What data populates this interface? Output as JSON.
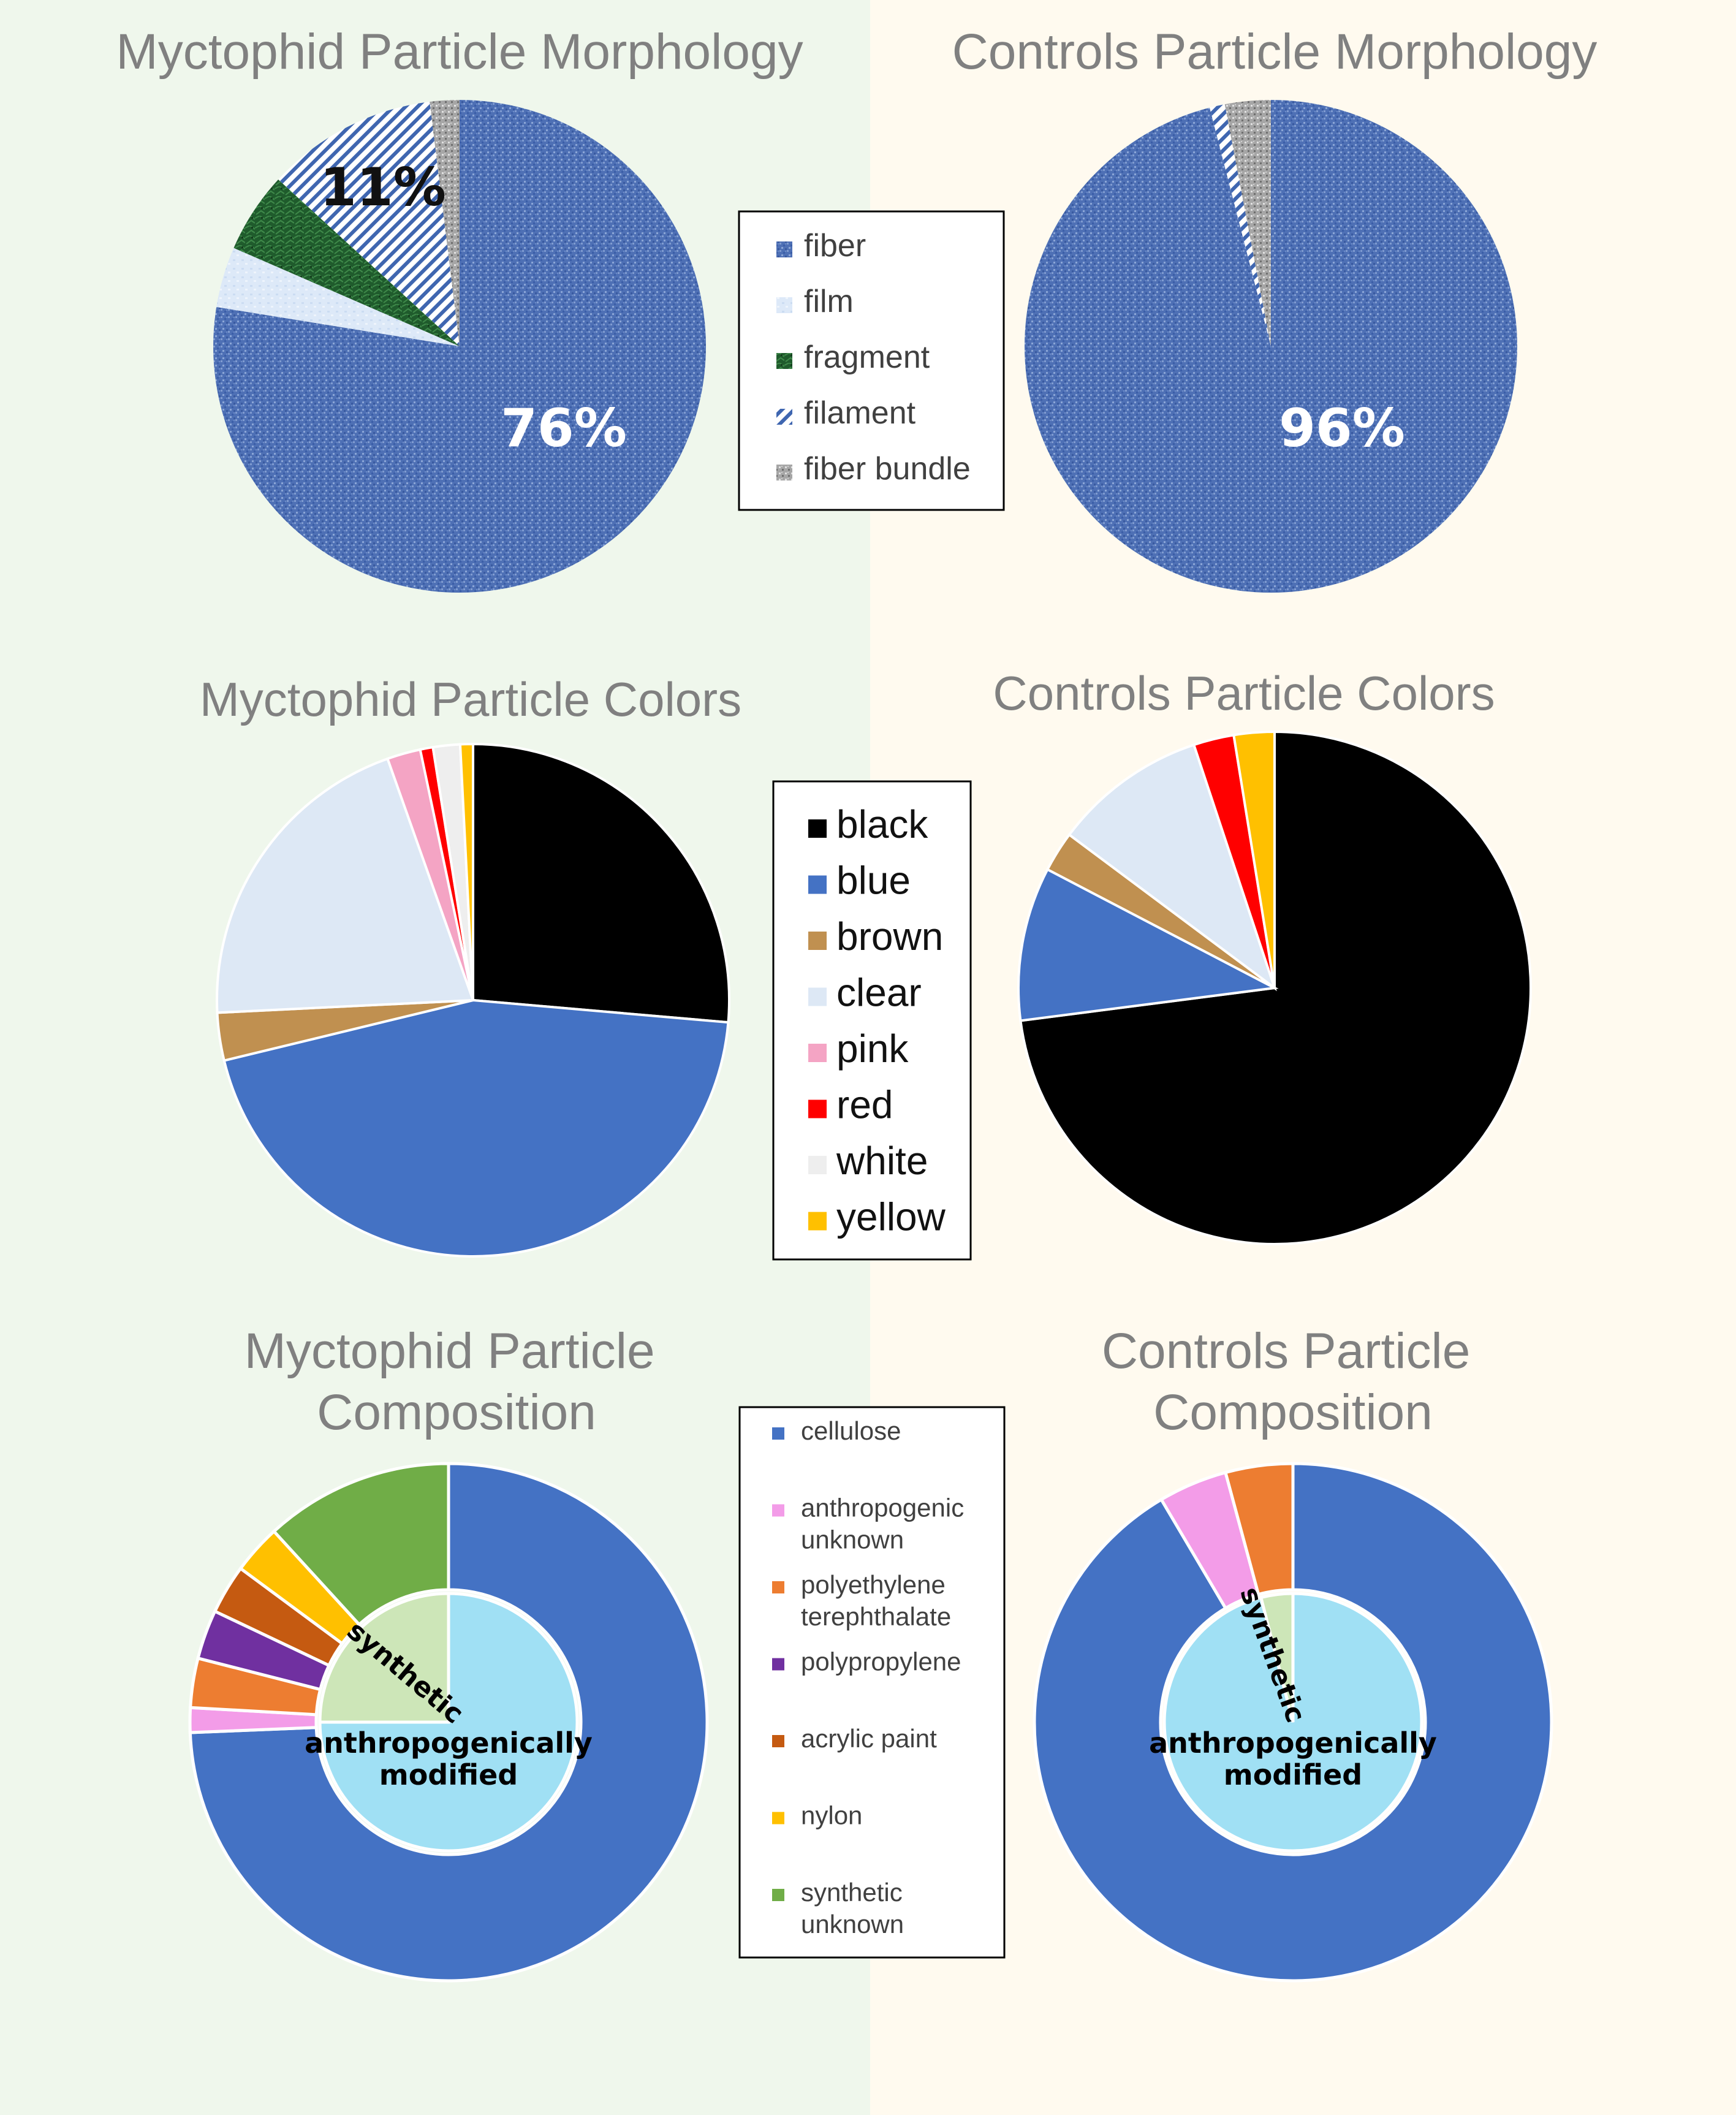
{
  "morphology_legend": [
    "fiber",
    "film",
    "fragment",
    "filament",
    "fiber bundle"
  ],
  "colors_legend": [
    "black",
    "blue",
    "brown",
    "clear",
    "pink",
    "red",
    "white",
    "yellow"
  ],
  "composition_legend": [
    "cellulose",
    "anthropogenic unknown",
    "polyethylene terephthalate",
    "polypropylene",
    "acrylic paint",
    "nylon",
    "synthetic unknown"
  ],
  "inner_ring_labels": {
    "synthetic": "synthetic",
    "anthropogenic_line1": "anthropogenically",
    "anthropogenic_line2": "modified"
  },
  "panel_colors": {
    "left": "#eff7ec",
    "right": "#fffaef"
  },
  "series_colors": {
    "fiber": "#4e70b5",
    "film": "#dbe8f8",
    "fragment": "#1f5b2c",
    "filament": "#3f66b0",
    "fiber_bundle": "#a6a6a6",
    "black": "#000000",
    "blue": "#4472c4",
    "brown": "#c09050",
    "clear": "#dde8f5",
    "pink": "#f4a4c4",
    "red": "#ff0000",
    "white": "#eeeeee",
    "yellow": "#ffc000",
    "cellulose": "#4472c4",
    "anthropogenic_unknown": "#f39ce8",
    "polyethylene_terephthalate": "#ed7d31",
    "polypropylene": "#7030a0",
    "acrylic_paint": "#c55a11",
    "nylon": "#ffc000",
    "synthetic_unknown": "#70ad47",
    "inner_anthropogenic": "#a0e0f4",
    "inner_synthetic": "#cde6b8"
  },
  "chart_data": [
    {
      "id": "myct-morph",
      "type": "pie",
      "title": "Myctophid Particle Morphology",
      "categories": [
        "fiber",
        "film",
        "fragment",
        "filament",
        "fiber bundle"
      ],
      "values": [
        76,
        3.9,
        5.2,
        11,
        1.9
      ],
      "data_labels": [
        "76%",
        "",
        "",
        "11%",
        ""
      ]
    },
    {
      "id": "ctrl-morph",
      "type": "pie",
      "title": "Controls Particle Morphology",
      "categories": [
        "fiber",
        "film",
        "fragment",
        "filament",
        "fiber bundle"
      ],
      "values": [
        96,
        0,
        0,
        1,
        3
      ],
      "data_labels": [
        "96%",
        "",
        "",
        "",
        ""
      ]
    },
    {
      "id": "myct-colors",
      "type": "pie",
      "title": "Myctophid Particle Colors",
      "categories": [
        "black",
        "blue",
        "brown",
        "clear",
        "pink",
        "red",
        "white",
        "yellow"
      ],
      "values": [
        26.3,
        44.7,
        3.0,
        20.3,
        2.1,
        0.8,
        1.7,
        0.8
      ]
    },
    {
      "id": "ctrl-colors",
      "type": "pie",
      "title": "Controls Particle Colors",
      "categories": [
        "black",
        "blue",
        "brown",
        "clear",
        "pink",
        "red",
        "white",
        "yellow"
      ],
      "values": [
        71.5,
        9.5,
        2.5,
        9.5,
        0,
        2.5,
        0,
        2.5
      ]
    },
    {
      "id": "myct-comp",
      "type": "pie",
      "title": "Myctophid Particle Composition",
      "outer": {
        "categories": [
          "cellulose",
          "anthropogenic unknown",
          "polyethylene terephthalate",
          "polypropylene",
          "acrylic paint",
          "nylon",
          "synthetic unknown"
        ],
        "values": [
          72.5,
          1.5,
          3.0,
          3.0,
          3.0,
          3.0,
          11.5
        ]
      },
      "inner": {
        "categories": [
          "anthropogenically modified",
          "synthetic"
        ],
        "values": [
          75,
          25
        ]
      }
    },
    {
      "id": "ctrl-comp",
      "type": "pie",
      "title": "Controls Particle Composition",
      "outer": {
        "categories": [
          "cellulose",
          "anthropogenic unknown",
          "polyethylene terephthalate",
          "polypropylene",
          "acrylic paint",
          "nylon",
          "synthetic unknown"
        ],
        "values": [
          91.5,
          4.3,
          4.2,
          0,
          0,
          0,
          0
        ]
      },
      "inner": {
        "categories": [
          "anthropogenically modified",
          "synthetic"
        ],
        "values": [
          96,
          4
        ]
      }
    }
  ]
}
